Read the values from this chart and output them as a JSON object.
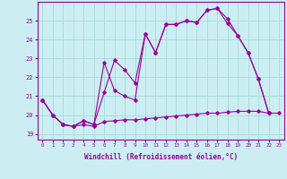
{
  "xlabel": "Windchill (Refroidissement éolien,°C)",
  "background_color": "#cceef2",
  "grid_color": "#aadddd",
  "line_color": "#990099",
  "xlim": [
    -0.5,
    23.5
  ],
  "ylim": [
    18.7,
    26.0
  ],
  "yticks": [
    19,
    20,
    21,
    22,
    23,
    24,
    25
  ],
  "xticks": [
    0,
    1,
    2,
    3,
    4,
    5,
    6,
    7,
    8,
    9,
    10,
    11,
    12,
    13,
    14,
    15,
    16,
    17,
    18,
    19,
    20,
    21,
    22,
    23
  ],
  "line1_x": [
    0,
    1,
    2,
    3,
    4,
    5,
    6,
    7,
    8,
    9,
    10,
    11,
    12,
    13,
    14,
    15,
    16,
    17,
    18,
    19,
    20,
    21,
    22,
    23
  ],
  "line1_y": [
    20.8,
    20.0,
    19.5,
    19.4,
    19.5,
    19.4,
    19.65,
    19.7,
    19.75,
    19.75,
    19.8,
    19.85,
    19.9,
    19.95,
    20.0,
    20.05,
    20.1,
    20.1,
    20.15,
    20.2,
    20.2,
    20.2,
    20.1,
    20.1
  ],
  "line2_x": [
    0,
    1,
    2,
    3,
    4,
    5,
    6,
    7,
    8,
    9,
    10,
    11,
    12,
    13,
    14,
    15,
    16,
    17,
    18,
    19,
    20,
    21,
    22
  ],
  "line2_y": [
    20.8,
    20.0,
    19.5,
    19.4,
    19.7,
    19.5,
    22.8,
    21.3,
    21.0,
    20.8,
    24.3,
    23.3,
    24.8,
    24.8,
    25.0,
    24.9,
    25.55,
    25.65,
    24.85,
    24.2,
    23.3,
    21.9,
    20.1
  ],
  "line3_x": [
    0,
    1,
    2,
    3,
    4,
    5,
    6,
    7,
    8,
    9,
    10,
    11,
    12,
    13,
    14,
    15,
    16,
    17,
    18,
    19,
    20,
    21,
    22
  ],
  "line3_y": [
    20.8,
    20.0,
    19.5,
    19.4,
    19.7,
    19.5,
    21.2,
    22.9,
    22.4,
    21.7,
    24.3,
    23.3,
    24.8,
    24.8,
    25.0,
    24.9,
    25.55,
    25.65,
    25.1,
    24.2,
    23.3,
    21.9,
    20.1
  ]
}
